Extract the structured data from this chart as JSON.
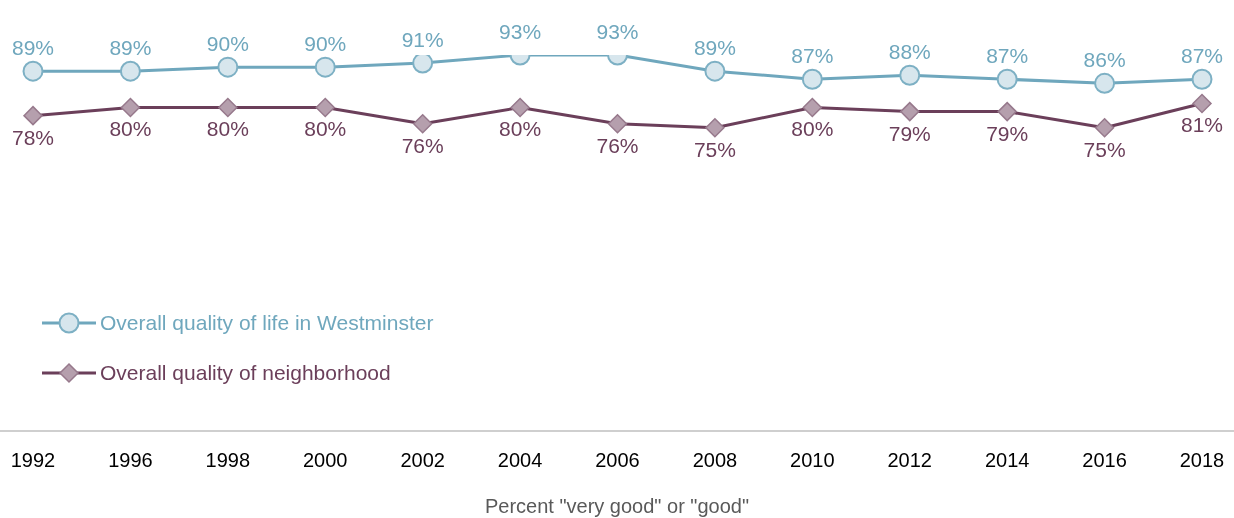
{
  "chart_data": {
    "type": "line",
    "xlabel": "Percent \"very good\" or \"good\"",
    "categories": [
      "1992",
      "1996",
      "1998",
      "2000",
      "2002",
      "2004",
      "2006",
      "2008",
      "2010",
      "2012",
      "2014",
      "2016",
      "2018"
    ],
    "series": [
      {
        "name": "Overall quality of life in Westminster",
        "color": "#6fa7bd",
        "marker": "circle",
        "values": [
          89,
          89,
          90,
          90,
          91,
          93,
          93,
          89,
          87,
          88,
          87,
          86,
          87
        ],
        "value_labels": [
          "89%",
          "89%",
          "90%",
          "90%",
          "91%",
          "93%",
          "93%",
          "89%",
          "87%",
          "88%",
          "87%",
          "86%",
          "87%"
        ]
      },
      {
        "name": "Overall quality of neighborhood",
        "color": "#6b3f5a",
        "marker": "diamond",
        "values": [
          78,
          80,
          80,
          80,
          76,
          80,
          76,
          75,
          80,
          79,
          79,
          75,
          81
        ],
        "value_labels": [
          "78%",
          "80%",
          "80%",
          "80%",
          "76%",
          "80%",
          "76%",
          "75%",
          "80%",
          "79%",
          "79%",
          "75%",
          "81%"
        ]
      }
    ],
    "legend": "bottom left",
    "tick_labels": "x",
    "line_style": "solid"
  }
}
